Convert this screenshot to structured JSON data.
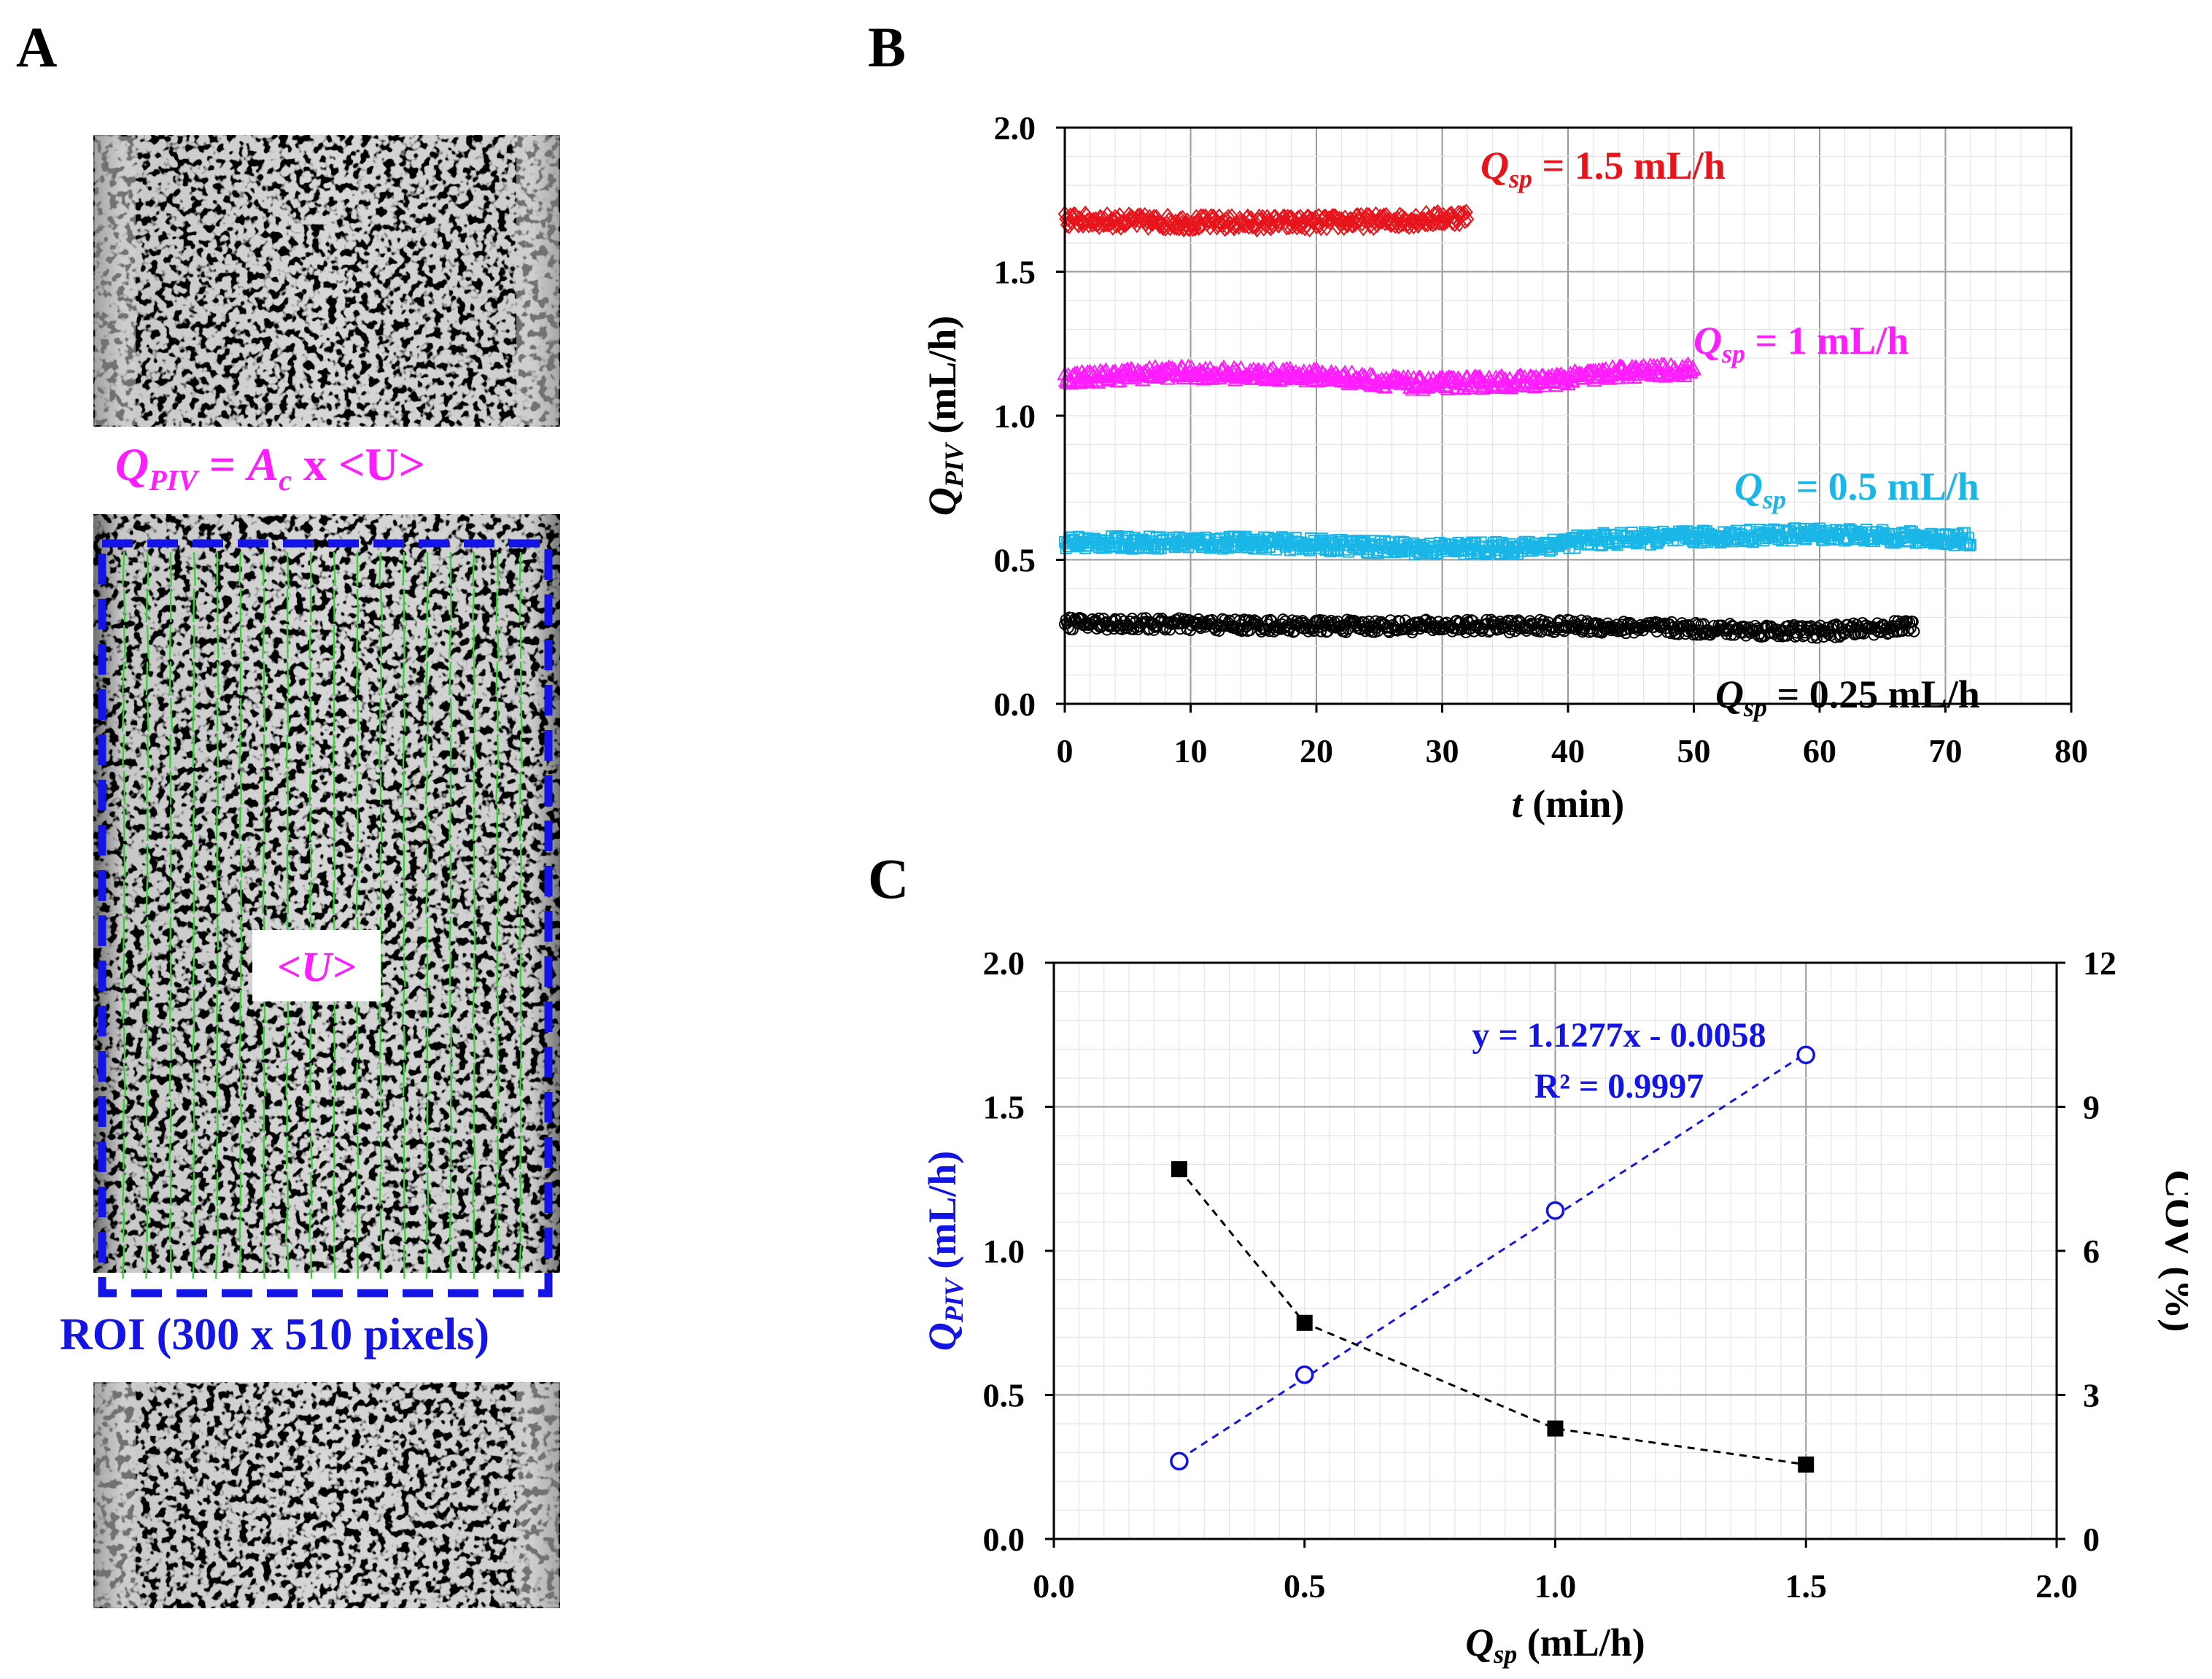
{
  "panel_labels": {
    "a": "A",
    "b": "B",
    "c": "C"
  },
  "colors": {
    "red": "#e8141b",
    "magenta": "#ff1cff",
    "cyan": "#1ab6e8",
    "black": "#000000",
    "blue": "#1414e6",
    "green": "#36d336"
  },
  "panel_a": {
    "formula": {
      "q": "Q",
      "q_sub": "PIV",
      "eq": " = ",
      "a": "A",
      "a_sub": "c",
      "rest": " x <U>"
    },
    "u_label": "<U>",
    "roi_label": "ROI (300 x 510 pixels)"
  },
  "chart_data": [
    {
      "id": "B",
      "type": "scatter",
      "xlabel": {
        "italic": "t",
        "rest": " (min)"
      },
      "ylabel": {
        "italic": "Q",
        "sub": "PIV",
        "rest": " (mL/h)"
      },
      "xlim": [
        0,
        80
      ],
      "ylim": [
        0,
        2.0
      ],
      "xticks": [
        "0",
        "10",
        "20",
        "30",
        "40",
        "50",
        "60",
        "70",
        "80"
      ],
      "yticks": [
        "0.0",
        "0.5",
        "1.0",
        "1.5",
        "2.0"
      ],
      "grid": true,
      "series": [
        {
          "name": "1.5 mL/h",
          "label_prefix": "Q",
          "label_sub": "sp",
          "label_rest": " = 1.5 mL/h",
          "color": "#e8141b",
          "marker": "diamond",
          "t_end": 32,
          "mean": 1.68,
          "drift": [
            [
              0,
              1.68
            ],
            [
              10,
              1.67
            ],
            [
              20,
              1.67
            ],
            [
              28,
              1.68
            ],
            [
              32,
              1.69
            ]
          ]
        },
        {
          "name": "1 mL/h",
          "label_prefix": "Q",
          "label_sub": "sp",
          "label_rest": " = 1 mL/h",
          "color": "#ff1cff",
          "marker": "triangle",
          "t_end": 50,
          "mean": 1.13,
          "drift": [
            [
              0,
              1.13
            ],
            [
              8,
              1.15
            ],
            [
              20,
              1.14
            ],
            [
              28,
              1.11
            ],
            [
              38,
              1.12
            ],
            [
              44,
              1.15
            ],
            [
              50,
              1.16
            ]
          ]
        },
        {
          "name": "0.5 mL/h",
          "label_prefix": "Q",
          "label_sub": "sp",
          "label_rest": " = 0.5 mL/h",
          "color": "#1ab6e8",
          "marker": "square",
          "t_end": 72,
          "mean": 0.56,
          "drift": [
            [
              0,
              0.56
            ],
            [
              15,
              0.56
            ],
            [
              28,
              0.54
            ],
            [
              36,
              0.54
            ],
            [
              42,
              0.57
            ],
            [
              60,
              0.59
            ],
            [
              72,
              0.57
            ]
          ]
        },
        {
          "name": "0.25 mL/h",
          "label_prefix": "Q",
          "label_sub": "sp",
          "label_rest": " = 0.25 mL/h",
          "color": "#000000",
          "marker": "circle",
          "t_end": 67.5,
          "mean": 0.27,
          "drift": [
            [
              0,
              0.28
            ],
            [
              20,
              0.27
            ],
            [
              40,
              0.27
            ],
            [
              50,
              0.26
            ],
            [
              60,
              0.25
            ],
            [
              67.5,
              0.27
            ]
          ]
        }
      ]
    },
    {
      "id": "C",
      "type": "scatter",
      "xlabel": {
        "italic": "Q",
        "sub": "sp",
        "rest": " (mL/h)"
      },
      "ylabel_left": {
        "italic": "Q",
        "sub": "PIV",
        "rest": " (mL/h)"
      },
      "ylabel_right": "COV (%)",
      "xlim": [
        0,
        2.0
      ],
      "ylim_left": [
        0,
        2.0
      ],
      "ylim_right": [
        0,
        12
      ],
      "xticks": [
        "0.0",
        "0.5",
        "1.0",
        "1.5",
        "2.0"
      ],
      "yticks_left": [
        "0.0",
        "0.5",
        "1.0",
        "1.5",
        "2.0"
      ],
      "yticks_right": [
        "0",
        "3",
        "6",
        "9",
        "12"
      ],
      "grid": true,
      "series": [
        {
          "name": "Q_PIV",
          "axis": "left",
          "color": "#1414e6",
          "marker": "open-circle",
          "x": [
            0.25,
            0.5,
            1.0,
            1.5
          ],
          "y": [
            0.27,
            0.57,
            1.14,
            1.68
          ]
        },
        {
          "name": "COV",
          "axis": "right",
          "color": "#000000",
          "marker": "filled-square",
          "x": [
            0.25,
            0.5,
            1.0,
            1.5
          ],
          "y": [
            7.7,
            4.5,
            2.3,
            1.55
          ]
        }
      ],
      "trendline": {
        "slope": 1.1277,
        "intercept": -0.0058,
        "x_range": [
          0.25,
          1.5
        ]
      },
      "annotation": {
        "line1": "y = 1.1277x - 0.0058",
        "line2": "R² = 0.9997"
      }
    }
  ]
}
